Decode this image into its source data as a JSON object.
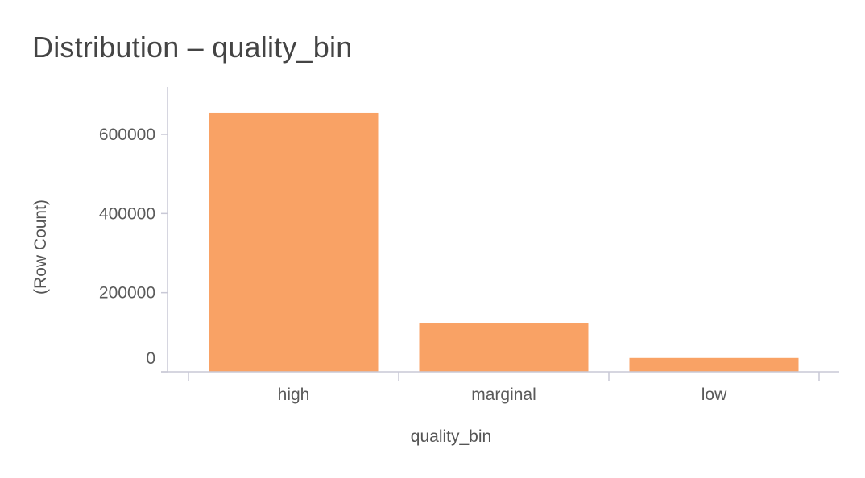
{
  "title": "Distribution – quality_bin",
  "chart_data": {
    "type": "bar",
    "categories": [
      "high",
      "marginal",
      "low"
    ],
    "values": [
      655000,
      122000,
      35000
    ],
    "xlabel": "quality_bin",
    "ylabel": "(Row Count)",
    "yticks": [
      0,
      200000,
      400000,
      600000
    ],
    "ylim": [
      0,
      720000
    ],
    "grid": false,
    "colors": {
      "bar": "#f9a265",
      "axis": "#c9c9d6"
    }
  }
}
